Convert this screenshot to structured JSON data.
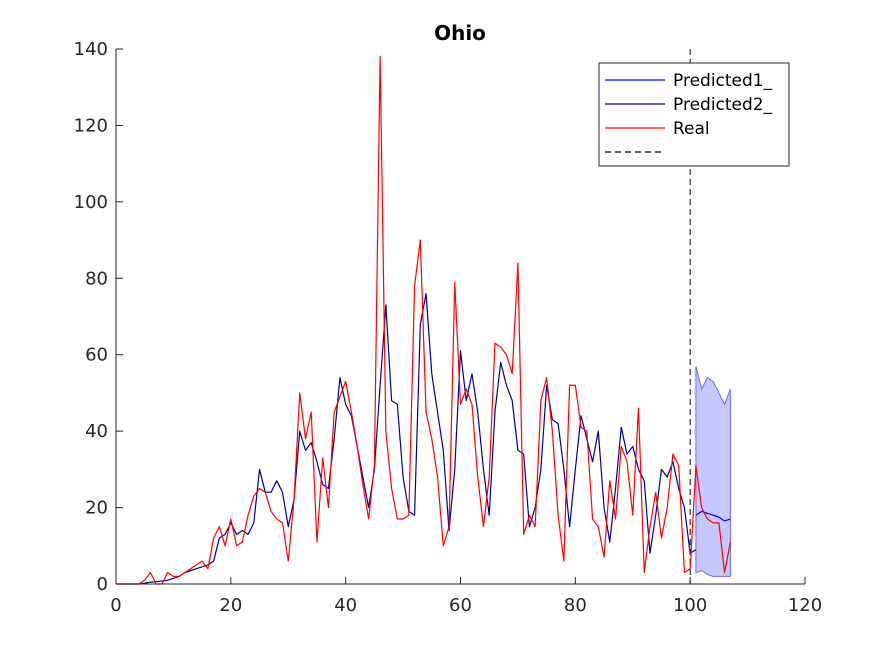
{
  "chart_data": {
    "type": "line",
    "title": "Ohio",
    "xlabel": "",
    "ylabel": "",
    "xlim": [
      0,
      120
    ],
    "ylim": [
      0,
      140
    ],
    "xticks": [
      0,
      20,
      40,
      60,
      80,
      100,
      120
    ],
    "yticks": [
      0,
      20,
      40,
      60,
      80,
      100,
      120,
      140
    ],
    "grid": false,
    "legend_position": "top-right",
    "colors": {
      "predicted1": "#0000ff",
      "predicted2": "#00008b",
      "real": "#ff0000",
      "divider": "#000000",
      "band_fill": "#9999ff"
    },
    "series": [
      {
        "name": "Predicted1_",
        "x": [
          101,
          102,
          103,
          104,
          105,
          106,
          107
        ],
        "values": [
          18,
          19,
          18.5,
          18,
          17.5,
          16.5,
          17
        ]
      },
      {
        "name": "Predicted2_",
        "x": [
          0,
          1,
          2,
          3,
          4,
          5,
          6,
          7,
          8,
          9,
          10,
          11,
          12,
          13,
          14,
          15,
          16,
          17,
          18,
          19,
          20,
          21,
          22,
          23,
          24,
          25,
          26,
          27,
          28,
          29,
          30,
          31,
          32,
          33,
          34,
          35,
          36,
          37,
          38,
          39,
          40,
          41,
          42,
          43,
          44,
          45,
          46,
          47,
          48,
          49,
          50,
          51,
          52,
          53,
          54,
          55,
          56,
          57,
          58,
          59,
          60,
          61,
          62,
          63,
          64,
          65,
          66,
          67,
          68,
          69,
          70,
          71,
          72,
          73,
          74,
          75,
          76,
          77,
          78,
          79,
          80,
          81,
          82,
          83,
          84,
          85,
          86,
          87,
          88,
          89,
          90,
          91,
          92,
          93,
          94,
          95,
          96,
          97,
          98,
          99,
          100,
          101
        ],
        "values": [
          0,
          0,
          0,
          0,
          0,
          0.2,
          0.5,
          0.6,
          0.8,
          1,
          1.5,
          2,
          3,
          3.5,
          4,
          4.5,
          5,
          6,
          12,
          13,
          16,
          13,
          14,
          13,
          16,
          30,
          24,
          24,
          27,
          24,
          15,
          22,
          40,
          35,
          37,
          32,
          26,
          25,
          38,
          54,
          47,
          44,
          36,
          28,
          20,
          30,
          52,
          73,
          48,
          47,
          28,
          19,
          18,
          68,
          76,
          55,
          45,
          35,
          14,
          30,
          61,
          48,
          55,
          45,
          30,
          18,
          45,
          58,
          52,
          48,
          35,
          34,
          15,
          20,
          30,
          52,
          43,
          42,
          30,
          15,
          30,
          44,
          38,
          32,
          40,
          20,
          11,
          25,
          41,
          34,
          36,
          30,
          27,
          8,
          18,
          30,
          28,
          32,
          25,
          20,
          8,
          9
        ]
      },
      {
        "name": "Real",
        "x": [
          0,
          1,
          2,
          3,
          4,
          5,
          6,
          7,
          8,
          9,
          10,
          11,
          12,
          13,
          14,
          15,
          16,
          17,
          18,
          19,
          20,
          21,
          22,
          23,
          24,
          25,
          26,
          27,
          28,
          29,
          30,
          31,
          32,
          33,
          34,
          35,
          36,
          37,
          38,
          39,
          40,
          41,
          42,
          43,
          44,
          45,
          46,
          47,
          48,
          49,
          50,
          51,
          52,
          53,
          54,
          55,
          56,
          57,
          58,
          59,
          60,
          61,
          62,
          63,
          64,
          65,
          66,
          67,
          68,
          69,
          70,
          71,
          72,
          73,
          74,
          75,
          76,
          77,
          78,
          79,
          80,
          81,
          82,
          83,
          84,
          85,
          86,
          87,
          88,
          89,
          90,
          91,
          92,
          93,
          94,
          95,
          96,
          97,
          98,
          99,
          100,
          101,
          102,
          103,
          104,
          105,
          106,
          107
        ],
        "values": [
          0,
          0,
          0,
          0,
          0,
          1,
          3,
          0,
          0,
          3,
          2,
          2,
          3,
          4,
          5,
          6,
          4,
          12,
          15,
          10,
          17,
          10,
          11,
          18,
          23,
          25,
          24,
          19,
          17,
          16,
          6,
          22,
          50,
          38,
          45,
          11,
          33,
          20,
          45,
          49,
          53,
          45,
          36,
          26,
          17,
          31,
          138,
          40,
          25,
          17,
          17,
          18,
          78,
          90,
          45,
          38,
          28,
          10,
          15,
          79,
          47,
          51,
          47,
          28,
          15,
          28,
          63,
          62,
          60,
          55,
          84,
          13,
          18,
          15,
          48,
          54,
          40,
          18,
          6,
          52,
          52,
          41,
          40,
          17,
          15,
          7,
          27,
          17,
          36,
          32,
          18,
          46,
          3,
          15,
          24,
          12,
          20,
          34,
          31,
          3,
          4,
          31,
          20,
          17,
          16,
          16,
          3,
          11
        ]
      }
    ],
    "band": {
      "x": [
        101,
        102,
        103,
        104,
        105,
        106,
        107
      ],
      "upper": [
        57,
        51,
        54,
        53,
        50,
        47,
        51
      ],
      "lower": [
        3,
        3.5,
        2.5,
        2,
        2,
        2,
        2
      ]
    },
    "vline_x": 100,
    "legend": [
      "Predicted1_",
      "Predicted2_",
      "Real",
      ""
    ]
  }
}
